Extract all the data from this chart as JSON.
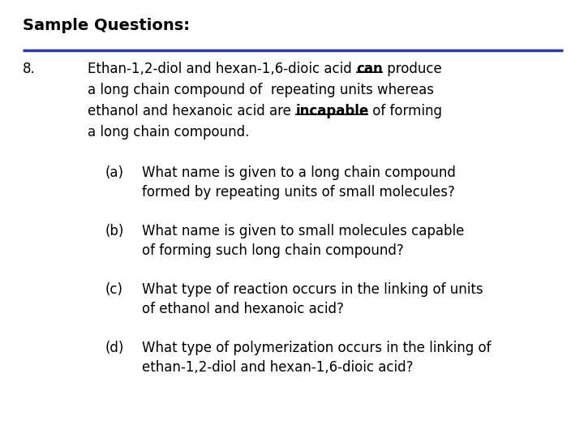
{
  "title": "Sample Questions:",
  "bg_color": "#ffffff",
  "title_color": "#000000",
  "title_fontsize": 14,
  "line_color": "#2a3d9e",
  "question_number": "8.",
  "font_family": "DejaVu Sans",
  "main_fontsize": 12,
  "sub_fontsize": 12,
  "main_text_segments": [
    {
      "text": "Ethan-1,2-diol and hexan-1,6-dioic acid ",
      "underline": false,
      "bold": false
    },
    {
      "text": "can",
      "underline": true,
      "bold": true
    },
    {
      "text": " produce",
      "underline": false,
      "bold": false
    }
  ],
  "main_line2": "a long chain compound of  repeating units whereas",
  "main_line3_segments": [
    {
      "text": "ethanol and hexanoic acid are ",
      "underline": false,
      "bold": false
    },
    {
      "text": "incapable",
      "underline": true,
      "bold": true
    },
    {
      "text": " of forming",
      "underline": false,
      "bold": false
    }
  ],
  "main_line4": "a long chain compound.",
  "sub_questions": [
    {
      "label": "(a)",
      "lines": [
        "What name is given to a long chain compound",
        "formed by repeating units of small molecules?"
      ]
    },
    {
      "label": "(b)",
      "lines": [
        "What name is given to small molecules capable",
        "of forming such long chain compound?"
      ]
    },
    {
      "label": "(c)",
      "lines": [
        "What type of reaction occurs in the linking of units",
        "of ethanol and hexanoic acid?"
      ]
    },
    {
      "label": "(d)",
      "lines": [
        "What type of polymerization occurs in the linking of",
        "ethan-1,2-diol and hexan-1,6-dioic acid?"
      ]
    }
  ]
}
